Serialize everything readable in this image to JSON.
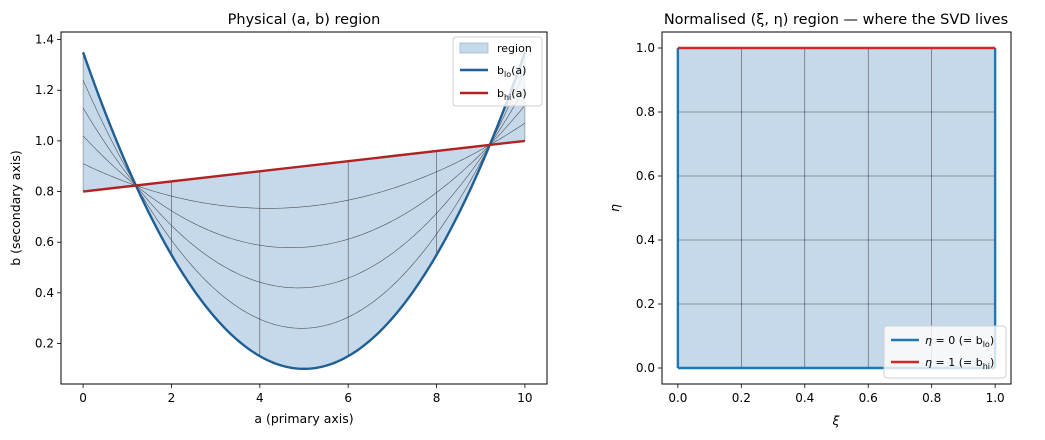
{
  "chart_data": [
    {
      "type": "area",
      "title": "Physical (a, b) region",
      "xlabel": "a (primary axis)",
      "ylabel": "b (secondary axis)",
      "xlim": [
        -0.5,
        10.5
      ],
      "ylim": [
        0.04,
        1.43
      ],
      "xticks": [
        "0",
        "2",
        "4",
        "6",
        "8",
        "10"
      ],
      "xtick_values": [
        0,
        2,
        4,
        6,
        8,
        10
      ],
      "yticks": [
        "0.2",
        "0.4",
        "0.6",
        "0.8",
        "1.0",
        "1.2",
        "1.4"
      ],
      "ytick_values": [
        0.2,
        0.4,
        0.6,
        0.8,
        1.0,
        1.2,
        1.4
      ],
      "series": [
        {
          "name": "region",
          "color": "#c6d9ea",
          "description": "area between b_lo(a) and b_hi(a)"
        },
        {
          "name": "b_lo(a)",
          "color": "#1f5f95",
          "formula": "0.05*(a-5)^2 + 0.1",
          "x": [
            0,
            1,
            2,
            3,
            4,
            5,
            6,
            7,
            8,
            9,
            10
          ],
          "values": [
            1.35,
            0.9,
            0.55,
            0.3,
            0.15,
            0.1,
            0.15,
            0.3,
            0.55,
            0.9,
            1.35
          ]
        },
        {
          "name": "b_hi(a)",
          "color": "#b22222",
          "formula": "0.8 + 0.02*a",
          "x": [
            0,
            10
          ],
          "values": [
            0.8,
            1.0
          ]
        }
      ],
      "grid_lines": {
        "eta_levels": [
          0.2,
          0.4,
          0.6,
          0.8
        ],
        "a_levels": [
          2,
          4,
          6,
          8
        ]
      },
      "legend": {
        "placement": "top-right",
        "entries": [
          "region",
          "b_lo(a)",
          "b_hi(a)"
        ]
      }
    },
    {
      "type": "area",
      "title": "Normalised (ξ, η) region — where the SVD lives",
      "xlabel": "ξ",
      "ylabel": "η",
      "xlim": [
        -0.05,
        1.05
      ],
      "ylim": [
        -0.05,
        1.05
      ],
      "xticks": [
        "0.0",
        "0.2",
        "0.4",
        "0.6",
        "0.8",
        "1.0"
      ],
      "xtick_values": [
        0,
        0.2,
        0.4,
        0.6,
        0.8,
        1.0
      ],
      "yticks": [
        "0.0",
        "0.2",
        "0.4",
        "0.6",
        "0.8",
        "1.0"
      ],
      "ytick_values": [
        0,
        0.2,
        0.4,
        0.6,
        0.8,
        1.0
      ],
      "series": [
        {
          "name": "η = 0 (= b_lo)",
          "color": "#1f77b4",
          "y": 0
        },
        {
          "name": "η = 1 (= b_hi)",
          "color": "#d62728",
          "y": 1
        }
      ],
      "region_fill": "#c6d9ea",
      "grid_lines": {
        "xi_levels": [
          0.2,
          0.4,
          0.6,
          0.8
        ],
        "eta_levels": [
          0.2,
          0.4,
          0.6,
          0.8
        ]
      },
      "legend": {
        "placement": "bottom-right",
        "entries": [
          "η = 0 (= b_lo)",
          "η = 1 (= b_hi)"
        ]
      }
    }
  ]
}
